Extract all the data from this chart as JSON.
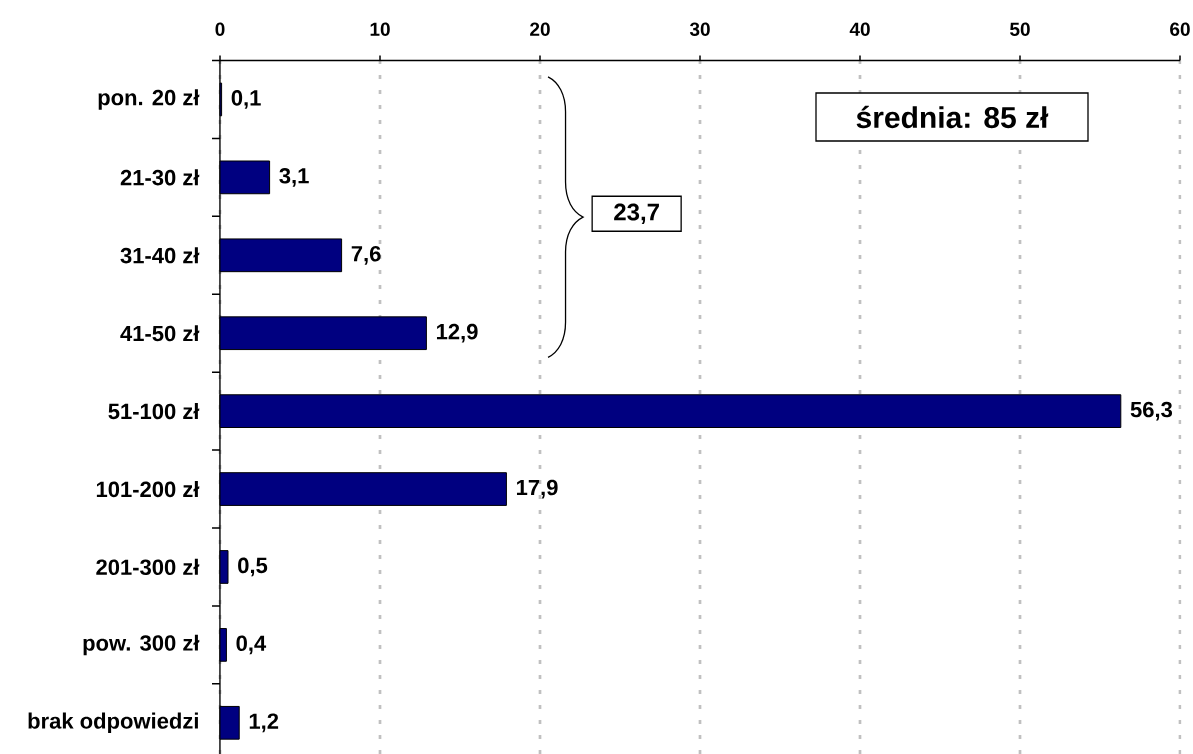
{
  "chart_data": {
    "type": "bar",
    "orientation": "horizontal",
    "categories": [
      "pon. 20 zł",
      "21-30 zł",
      "31-40 zł",
      "41-50 zł",
      "51-100 zł",
      "101-200 zł",
      "201-300 zł",
      "pow. 300 zł",
      "brak odpowiedzi"
    ],
    "values": [
      0.1,
      3.1,
      7.6,
      12.9,
      56.3,
      17.9,
      0.5,
      0.4,
      1.2
    ],
    "value_labels": [
      "0,1",
      "3,1",
      "7,6",
      "12,9",
      "56,3",
      "17,9",
      "0,5",
      "0,4",
      "1,2"
    ],
    "color": "#000080",
    "xlim": [
      0,
      60
    ],
    "xticks": [
      0,
      10,
      20,
      30,
      40,
      50,
      60
    ],
    "grid": "x",
    "annotations": [
      "średnia: 85 zł",
      "23,7"
    ]
  }
}
